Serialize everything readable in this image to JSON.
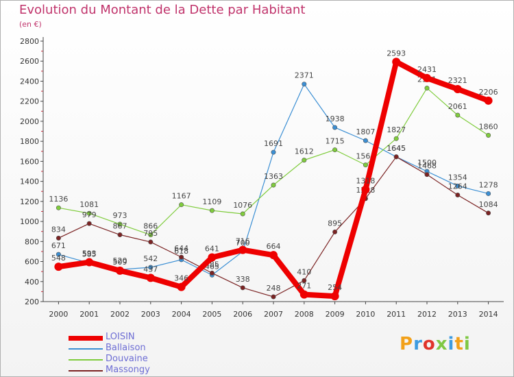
{
  "chart_data": {
    "type": "line",
    "title": "Evolution du Montant de la Dette par Habitant",
    "subtitle": "(en €)",
    "x": [
      "2000",
      "2001",
      "2002",
      "2003",
      "2004",
      "2005",
      "2006",
      "2007",
      "2008",
      "2009",
      "2010",
      "2011",
      "2012",
      "2013",
      "2014"
    ],
    "y_ticks": [
      "200",
      "400",
      "600",
      "800",
      "1000",
      "1200",
      "1400",
      "1600",
      "1800",
      "2000",
      "2200",
      "2400",
      "2600",
      "2800"
    ],
    "ylim": [
      200,
      2800
    ],
    "grid": false,
    "legend_position": "bottom-left",
    "series": [
      {
        "name": "LOISIN",
        "color": "#ee0000",
        "emphasis": true,
        "values": [
          548,
          593,
          509,
          437,
          346,
          641,
          716,
          664,
          271,
          254,
          1318,
          2593,
          2431,
          2321,
          2206
        ]
      },
      {
        "name": "Ballaison",
        "color": "#3b8fd4",
        "values": [
          671,
          585,
          520,
          542,
          618,
          465,
          700,
          1691,
          2371,
          1938,
          1807,
          1645,
          1500,
          1354,
          1278
        ]
      },
      {
        "name": "Douvaine",
        "color": "#7fcc3c",
        "values": [
          1136,
          1081,
          973,
          866,
          1167,
          1109,
          1076,
          1363,
          1612,
          1715,
          1564,
          1827,
          2331,
          2061,
          1860
        ]
      },
      {
        "name": "Massongy",
        "color": "#7b2323",
        "values": [
          834,
          979,
          867,
          795,
          644,
          485,
          338,
          248,
          410,
          895,
          1228,
          1645,
          1468,
          1264,
          1084
        ]
      }
    ]
  },
  "branding": {
    "logo_text": "Proxiti",
    "logo_colors": [
      "#f2a019",
      "#3d9be0",
      "#e0342b",
      "#7fc843",
      "#3d9be0",
      "#f2a019",
      "#7fc843"
    ]
  }
}
